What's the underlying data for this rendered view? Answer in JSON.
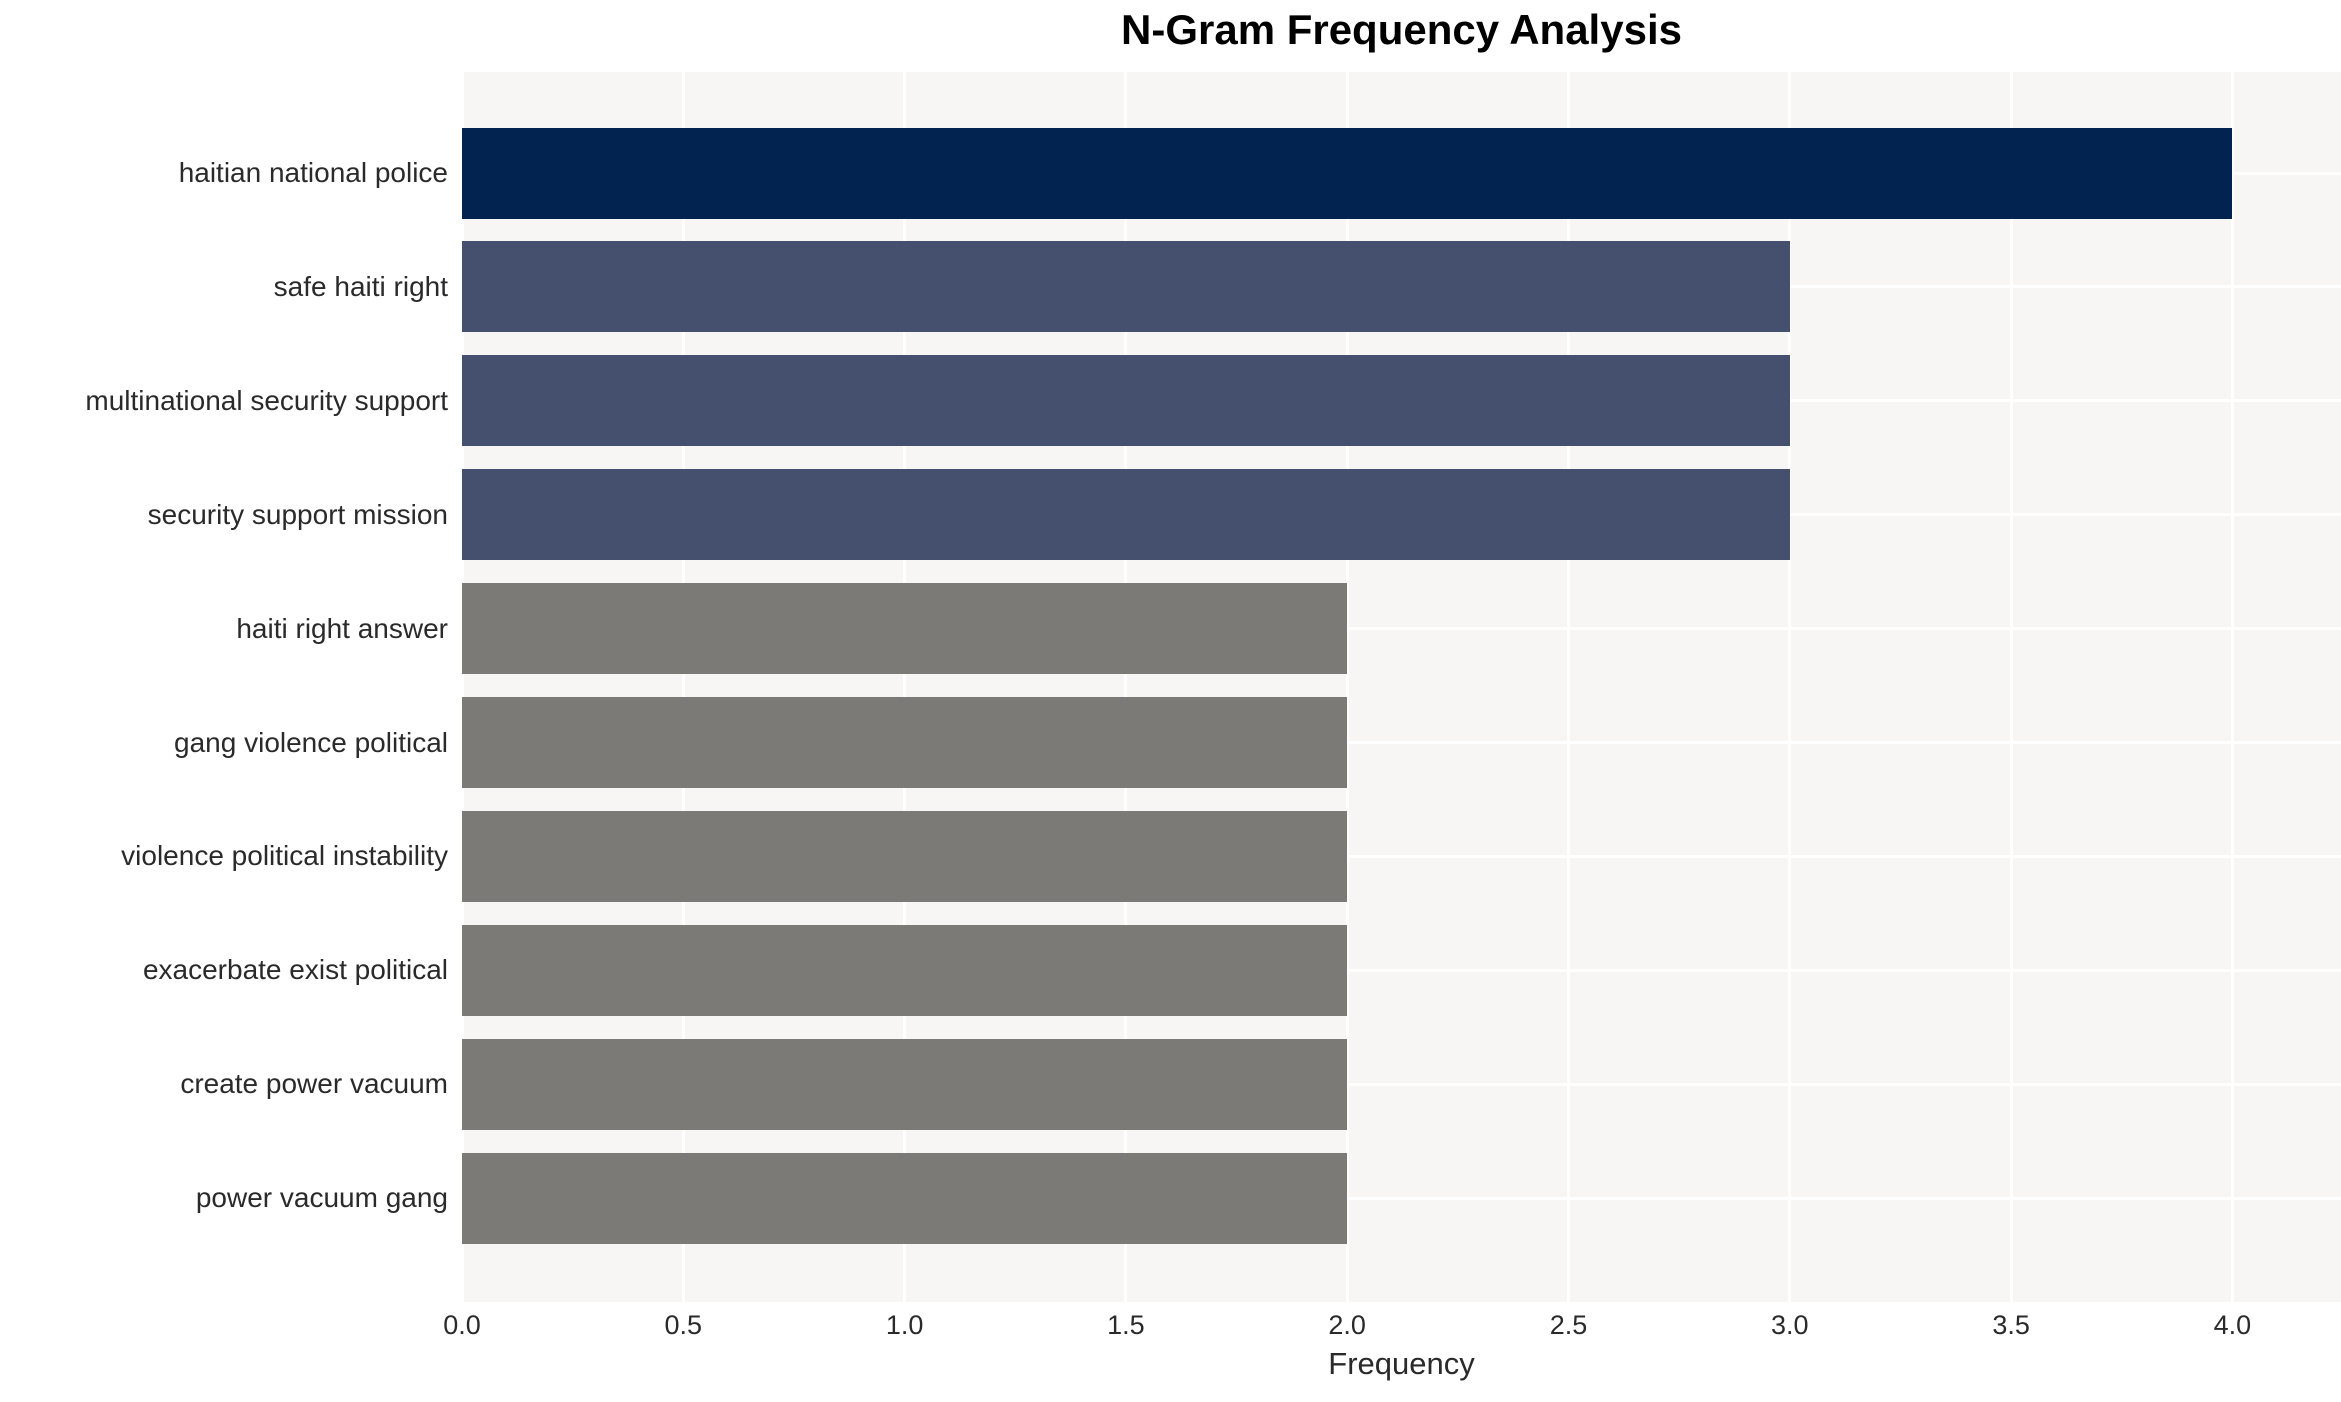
{
  "chart_data": {
    "type": "bar",
    "orientation": "horizontal",
    "title": "N-Gram Frequency Analysis",
    "xlabel": "Frequency",
    "ylabel": "",
    "xlim": [
      0,
      4.25
    ],
    "grid": true,
    "legend": "none",
    "xtick_labels": [
      "0.0",
      "0.5",
      "1.0",
      "1.5",
      "2.0",
      "2.5",
      "3.0",
      "3.5",
      "4.0"
    ],
    "categories": [
      "haitian national police",
      "safe haiti right",
      "multinational security support",
      "security support mission",
      "haiti right answer",
      "gang violence political",
      "violence political instability",
      "exacerbate exist political",
      "create power vacuum",
      "power vacuum gang"
    ],
    "values": [
      4,
      3,
      3,
      3,
      2,
      2,
      2,
      2,
      2,
      2
    ],
    "bar_colors": [
      "#022350",
      "#45506e",
      "#45506e",
      "#45506e",
      "#7b7a76",
      "#7b7a76",
      "#7b7a76",
      "#7b7a76",
      "#7b7a76",
      "#7b7a76"
    ]
  },
  "colors": {
    "plot_background": "#f7f6f5",
    "gridline": "#ffffff",
    "bar_value_4": "#022350",
    "bar_value_3": "#45506e",
    "bar_value_2": "#7b7a76",
    "title_text": "#000000",
    "axis_text": "#2a2a2a"
  }
}
